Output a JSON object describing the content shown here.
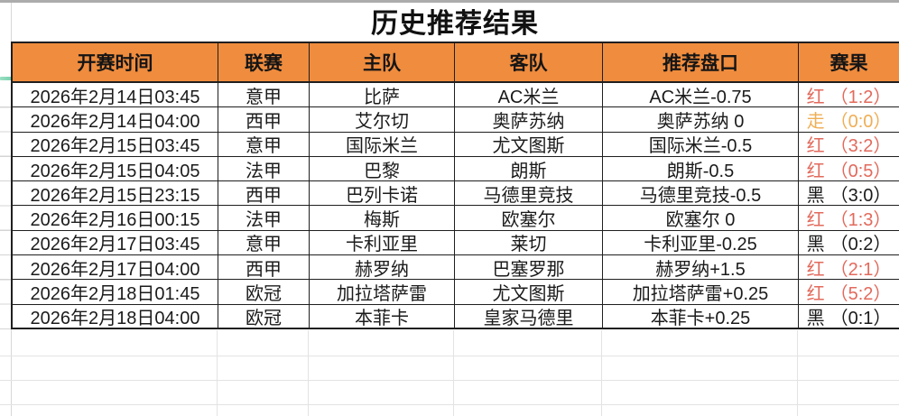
{
  "title": "历史推荐结果",
  "colors": {
    "header_bg": "#EF8C3E",
    "border_dark": "#1F1F1F",
    "result_red": "#E26A5C",
    "result_push": "#EFAE55",
    "result_black": "#1B1B1B",
    "accent_green": "#4BBD92",
    "grid_faint": "#E3E3E3"
  },
  "table": {
    "columns": [
      "开赛时间",
      "联赛",
      "主队",
      "客队",
      "推荐盘口",
      "赛果"
    ],
    "rows": [
      {
        "time": "2026年2月14日03:45",
        "league": "意甲",
        "home": "比萨",
        "away": "AC米兰",
        "handicap": "AC米兰-0.75",
        "result": {
          "flag": "红",
          "score": "（1:2）",
          "type": "red"
        }
      },
      {
        "time": "2026年2月14日04:00",
        "league": "西甲",
        "home": "艾尔切",
        "away": "奥萨苏纳",
        "handicap": "奥萨苏纳 0",
        "result": {
          "flag": "走",
          "score": "（0:0）",
          "type": "push"
        }
      },
      {
        "time": "2026年2月15日03:45",
        "league": "意甲",
        "home": "国际米兰",
        "away": "尤文图斯",
        "handicap": "国际米兰-0.5",
        "result": {
          "flag": "红",
          "score": "（3:2）",
          "type": "red"
        }
      },
      {
        "time": "2026年2月15日04:05",
        "league": "法甲",
        "home": "巴黎",
        "away": "朗斯",
        "handicap": "朗斯-0.5",
        "result": {
          "flag": "红",
          "score": "（0:5）",
          "type": "red"
        }
      },
      {
        "time": "2026年2月15日23:15",
        "league": "西甲",
        "home": "巴列卡诺",
        "away": "马德里竞技",
        "handicap": "马德里竞技-0.5",
        "result": {
          "flag": "黑",
          "score": "（3:0）",
          "type": "black"
        }
      },
      {
        "time": "2026年2月16日00:15",
        "league": "法甲",
        "home": "梅斯",
        "away": "欧塞尔",
        "handicap": "欧塞尔 0",
        "result": {
          "flag": "红",
          "score": "（1:3）",
          "type": "red"
        }
      },
      {
        "time": "2026年2月17日03:45",
        "league": "意甲",
        "home": "卡利亚里",
        "away": "莱切",
        "handicap": "卡利亚里-0.25",
        "result": {
          "flag": "黑",
          "score": "（0:2）",
          "type": "black"
        }
      },
      {
        "time": "2026年2月17日04:00",
        "league": "西甲",
        "home": "赫罗纳",
        "away": "巴塞罗那",
        "handicap": "赫罗纳+1.5",
        "result": {
          "flag": "红",
          "score": "（2:1）",
          "type": "red"
        }
      },
      {
        "time": "2026年2月18日01:45",
        "league": "欧冠",
        "home": "加拉塔萨雷",
        "away": "尤文图斯",
        "handicap": "加拉塔萨雷+0.25",
        "result": {
          "flag": "红",
          "score": "（5:2）",
          "type": "red"
        }
      },
      {
        "time": "2026年2月18日04:00",
        "league": "欧冠",
        "home": "本菲卡",
        "away": "皇家马德里",
        "handicap": "本菲卡+0.25",
        "result": {
          "flag": "黑",
          "score": "（0:1）",
          "type": "black"
        }
      }
    ]
  }
}
